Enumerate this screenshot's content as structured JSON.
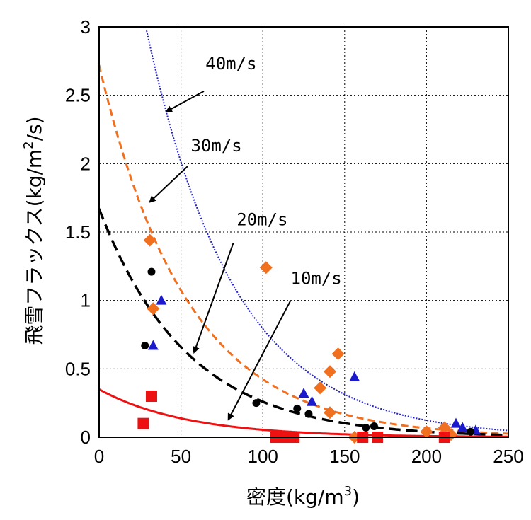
{
  "chart_data": {
    "type": "scatter",
    "title": "",
    "xlabel": "密度(kg/m",
    "xlabel_sup": "3",
    "xlabel_close": ")",
    "ylabel": "飛雪フラックス(kg/m",
    "ylabel_sup": "2",
    "ylabel_close": "/s)",
    "xlim": [
      0,
      250
    ],
    "ylim": [
      0,
      3
    ],
    "x_ticks": [
      "0",
      "50",
      "100",
      "150",
      "200",
      "250"
    ],
    "y_ticks": [
      "0",
      "0.5",
      "1",
      "1.5",
      "2",
      "2.5",
      "3"
    ],
    "grid": true,
    "curves": [
      {
        "label": "40m/s",
        "color": "#2222cc",
        "style": "dotted",
        "a": 5.1,
        "b": 0.0186,
        "x_start": 25
      },
      {
        "label": "30m/s",
        "color": "#f07020",
        "style": "dashed",
        "a": 2.72,
        "b": 0.0186,
        "x_start": 0
      },
      {
        "label": "20m/s",
        "color": "#000000",
        "style": "long-dashed",
        "a": 1.67,
        "b": 0.0186,
        "x_start": 0
      },
      {
        "label": "10m/s",
        "color": "#ee1111",
        "style": "solid",
        "a": 0.35,
        "b": 0.0186,
        "x_start": 0
      }
    ],
    "series": [
      {
        "marker": "triangle",
        "color": "#1a1acc",
        "points": [
          [
            38,
            1.0
          ],
          [
            33,
            0.67
          ],
          [
            125,
            0.32
          ],
          [
            130,
            0.26
          ],
          [
            156,
            0.44
          ],
          [
            218,
            0.1
          ],
          [
            222,
            0.07
          ],
          [
            230,
            0.05
          ]
        ]
      },
      {
        "marker": "diamond",
        "color": "#f07020",
        "points": [
          [
            31,
            1.44
          ],
          [
            33,
            0.94
          ],
          [
            102,
            1.24
          ],
          [
            141,
            0.48
          ],
          [
            146,
            0.61
          ],
          [
            135,
            0.36
          ],
          [
            141,
            0.18
          ],
          [
            156,
            0.0
          ],
          [
            200,
            0.04
          ],
          [
            211,
            0.07
          ],
          [
            215,
            0.02
          ]
        ]
      },
      {
        "marker": "circle",
        "color": "#000000",
        "points": [
          [
            32,
            1.21
          ],
          [
            28,
            0.67
          ],
          [
            96,
            0.25
          ],
          [
            121,
            0.21
          ],
          [
            128,
            0.17
          ],
          [
            163,
            0.07
          ],
          [
            168,
            0.08
          ],
          [
            227,
            0.04
          ]
        ]
      },
      {
        "marker": "square",
        "color": "#ee1111",
        "points": [
          [
            32,
            0.3
          ],
          [
            27,
            0.1
          ],
          [
            108,
            0.0
          ],
          [
            113,
            0.0
          ],
          [
            119,
            0.0
          ],
          [
            161,
            0.0
          ],
          [
            170,
            0.0
          ],
          [
            211,
            0.0
          ]
        ]
      }
    ],
    "annotations": [
      {
        "text": "40m/s",
        "text_x": 65,
        "text_y": 2.69,
        "arrow_from": [
          64,
          2.53
        ],
        "arrow_to": [
          41,
          2.38
        ]
      },
      {
        "text": "30m/s",
        "text_x": 56,
        "text_y": 2.09,
        "arrow_from": [
          54,
          1.98
        ],
        "arrow_to": [
          31,
          1.72
        ]
      },
      {
        "text": "20m/s",
        "text_x": 84,
        "text_y": 1.55,
        "arrow_from": [
          82,
          1.42
        ],
        "arrow_to": [
          58,
          0.62
        ]
      },
      {
        "text": "10m/s",
        "text_x": 117,
        "text_y": 1.12,
        "arrow_from": [
          117,
          1.0
        ],
        "arrow_to": [
          79,
          0.13
        ]
      }
    ]
  }
}
